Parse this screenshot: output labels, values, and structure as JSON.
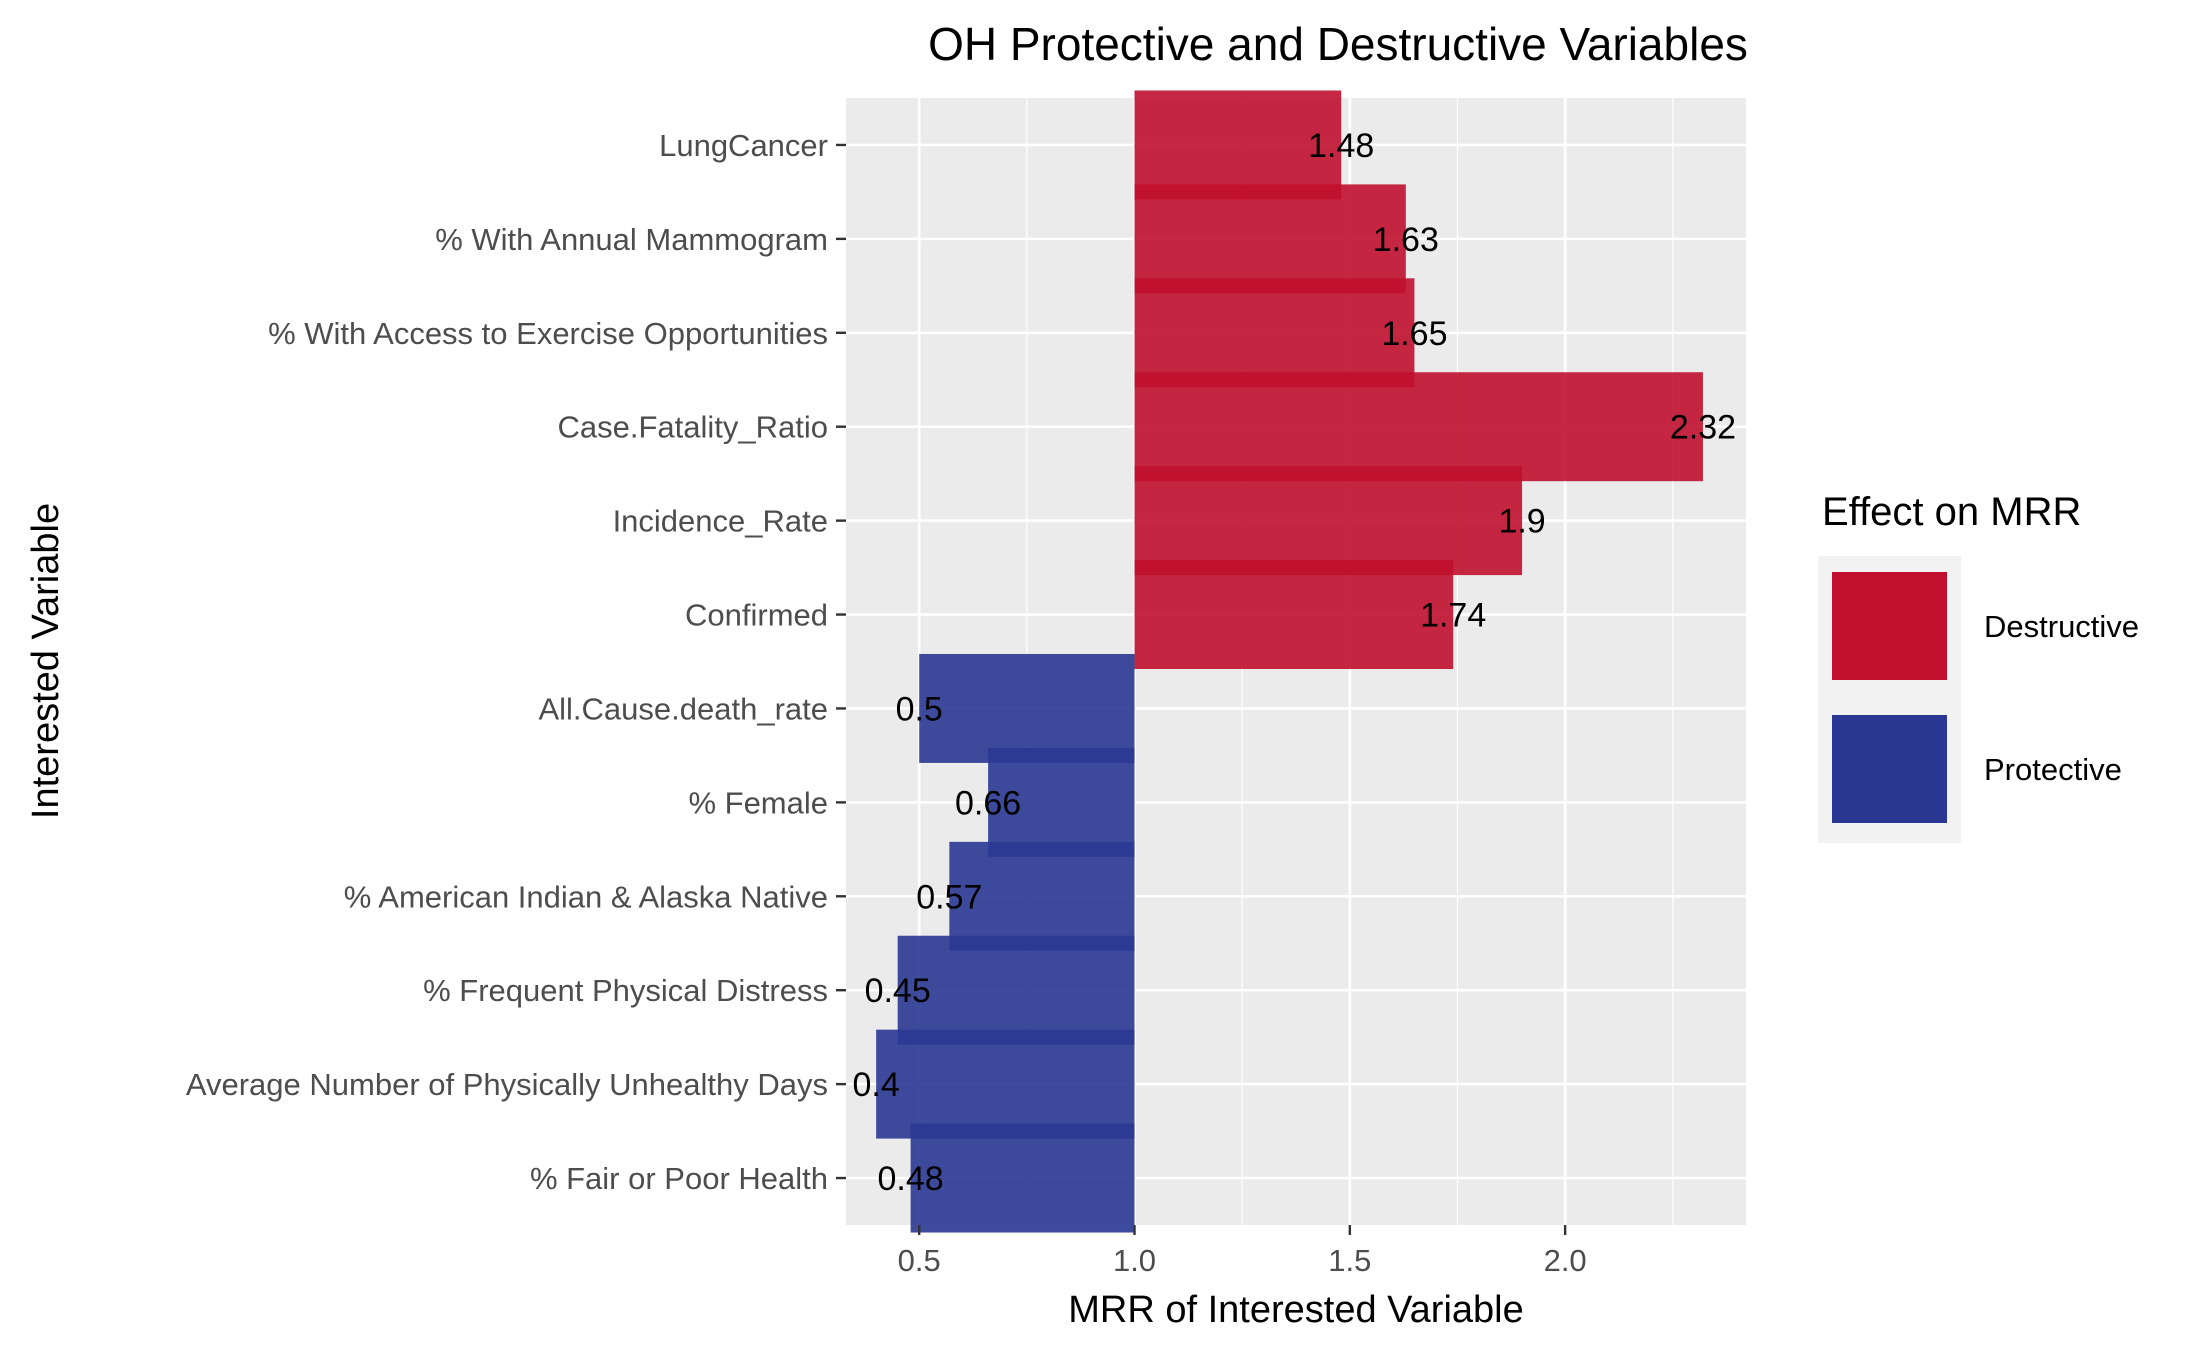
{
  "chart_data": {
    "type": "bar",
    "orientation": "horizontal",
    "title": "OH Protective and Destructive Variables",
    "xlabel": "MRR of Interested Variable",
    "ylabel": "Interested Variable",
    "baseline": 1.0,
    "xlim": [
      0.33,
      2.42
    ],
    "x_ticks": [
      "0.5",
      "1.0",
      "1.5",
      "2.0"
    ],
    "x_tick_values": [
      0.5,
      1.0,
      1.5,
      2.0
    ],
    "grid": true,
    "legend": {
      "title": "Effect on MRR",
      "position": "right",
      "items": [
        {
          "label": "Destructive",
          "color": "#c0102e"
        },
        {
          "label": "Protective",
          "color": "#2a3893"
        }
      ]
    },
    "categories": [
      "LungCancer",
      "% With Annual Mammogram",
      "% With Access to Exercise Opportunities",
      "Case.Fatality_Ratio",
      "Incidence_Rate",
      "Confirmed",
      "All.Cause.death_rate",
      "% Female",
      "% American Indian & Alaska Native",
      "% Frequent Physical Distress",
      "Average Number of Physically Unhealthy Days",
      "% Fair or Poor Health"
    ],
    "values": [
      1.48,
      1.63,
      1.65,
      2.32,
      1.9,
      1.74,
      0.5,
      0.66,
      0.57,
      0.45,
      0.4,
      0.48
    ],
    "value_labels": [
      "1.48",
      "1.63",
      "1.65",
      "2.32",
      "1.9",
      "1.74",
      "0.5",
      "0.66",
      "0.57",
      "0.45",
      "0.4",
      "0.48"
    ],
    "effects": [
      "Destructive",
      "Destructive",
      "Destructive",
      "Destructive",
      "Destructive",
      "Destructive",
      "Protective",
      "Protective",
      "Protective",
      "Protective",
      "Protective",
      "Protective"
    ]
  }
}
